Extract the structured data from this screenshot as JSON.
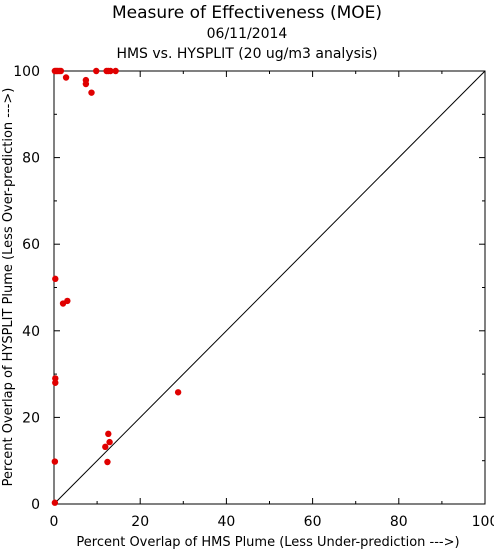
{
  "chart_data": {
    "type": "scatter",
    "title": "Measure of Effectiveness (MOE)",
    "date": "06/11/2014",
    "subtitle": "HMS vs. HYSPLIT  (20 ug/m3 analysis)",
    "xlabel": "Percent Overlap of HMS Plume (Less Under-prediction --->)",
    "ylabel": "Percent Overlap of HYSPLIT Plume (Less Over-prediction --->)",
    "xlim": [
      0,
      100
    ],
    "ylim": [
      0,
      100
    ],
    "xticks": [
      "0",
      "20",
      "40",
      "60",
      "80",
      "100"
    ],
    "yticks": [
      "0",
      "20",
      "40",
      "60",
      "80",
      "100"
    ],
    "reference_line": "y = x",
    "marker_color": "#e00000",
    "grid": false,
    "points": [
      {
        "x": 0.2,
        "y": 100
      },
      {
        "x": 0.5,
        "y": 100
      },
      {
        "x": 0.8,
        "y": 100
      },
      {
        "x": 1.2,
        "y": 100
      },
      {
        "x": 1.6,
        "y": 100
      },
      {
        "x": 2.8,
        "y": 98.5
      },
      {
        "x": 7.4,
        "y": 97.9
      },
      {
        "x": 7.4,
        "y": 97.0
      },
      {
        "x": 8.7,
        "y": 95.0
      },
      {
        "x": 9.8,
        "y": 100
      },
      {
        "x": 12.2,
        "y": 100
      },
      {
        "x": 12.6,
        "y": 100
      },
      {
        "x": 13.1,
        "y": 100
      },
      {
        "x": 14.3,
        "y": 100
      },
      {
        "x": 0.3,
        "y": 52.0
      },
      {
        "x": 2.1,
        "y": 46.3
      },
      {
        "x": 3.1,
        "y": 46.9
      },
      {
        "x": 0.3,
        "y": 29.0
      },
      {
        "x": 0.3,
        "y": 28.0
      },
      {
        "x": 0.2,
        "y": 9.8
      },
      {
        "x": 0.2,
        "y": 0.3
      },
      {
        "x": 28.8,
        "y": 25.8
      },
      {
        "x": 12.6,
        "y": 16.2
      },
      {
        "x": 12.9,
        "y": 14.3
      },
      {
        "x": 11.9,
        "y": 13.2
      },
      {
        "x": 12.4,
        "y": 9.7
      }
    ]
  }
}
